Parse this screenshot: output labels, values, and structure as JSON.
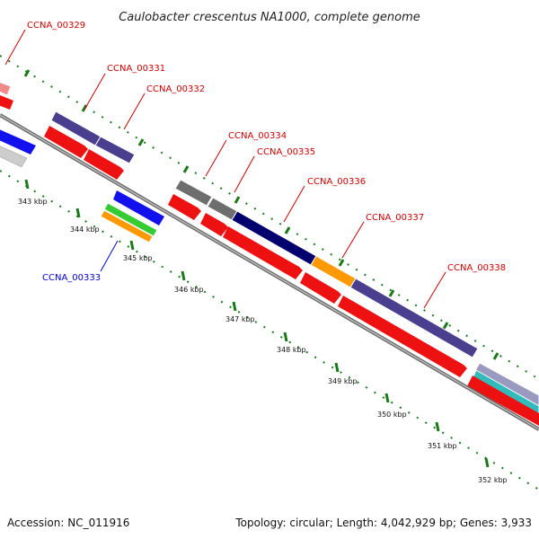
{
  "title": "Caulobacter crescentus NA1000, complete genome",
  "footer": {
    "accession": "Accession: NC_011916",
    "topology": "Topology: circular; Length: 4,042,929 bp; Genes: 3,933"
  },
  "tick_labels": [
    "343 kbp",
    "344 kbp",
    "345 kbp",
    "346 kbp",
    "347 kbp",
    "348 kbp",
    "349 kbp",
    "350 kbp",
    "351 kbp",
    "352 kbp"
  ],
  "gene_labels": [
    {
      "text": "CCNA_00329",
      "color": "#cc0000"
    },
    {
      "text": "CCNA_00331",
      "color": "#cc0000"
    },
    {
      "text": "CCNA_00332",
      "color": "#cc0000"
    },
    {
      "text": "CCNA_00333",
      "color": "#0000cc"
    },
    {
      "text": "CCNA_00334",
      "color": "#cc0000"
    },
    {
      "text": "CCNA_00335",
      "color": "#cc0000"
    },
    {
      "text": "CCNA_00336",
      "color": "#cc0000"
    },
    {
      "text": "CCNA_00337",
      "color": "#cc0000"
    },
    {
      "text": "CCNA_00338",
      "color": "#cc0000"
    }
  ],
  "colors": {
    "cog_purple": "#4a3f8f",
    "navy": "#00006e",
    "gray": "#6e6e6e",
    "orange": "#ff9900",
    "red": "#ee1111",
    "blue": "#1111ee",
    "green": "#33cc33",
    "tick_green": "#1a7a1a",
    "backbone": "#888888"
  }
}
